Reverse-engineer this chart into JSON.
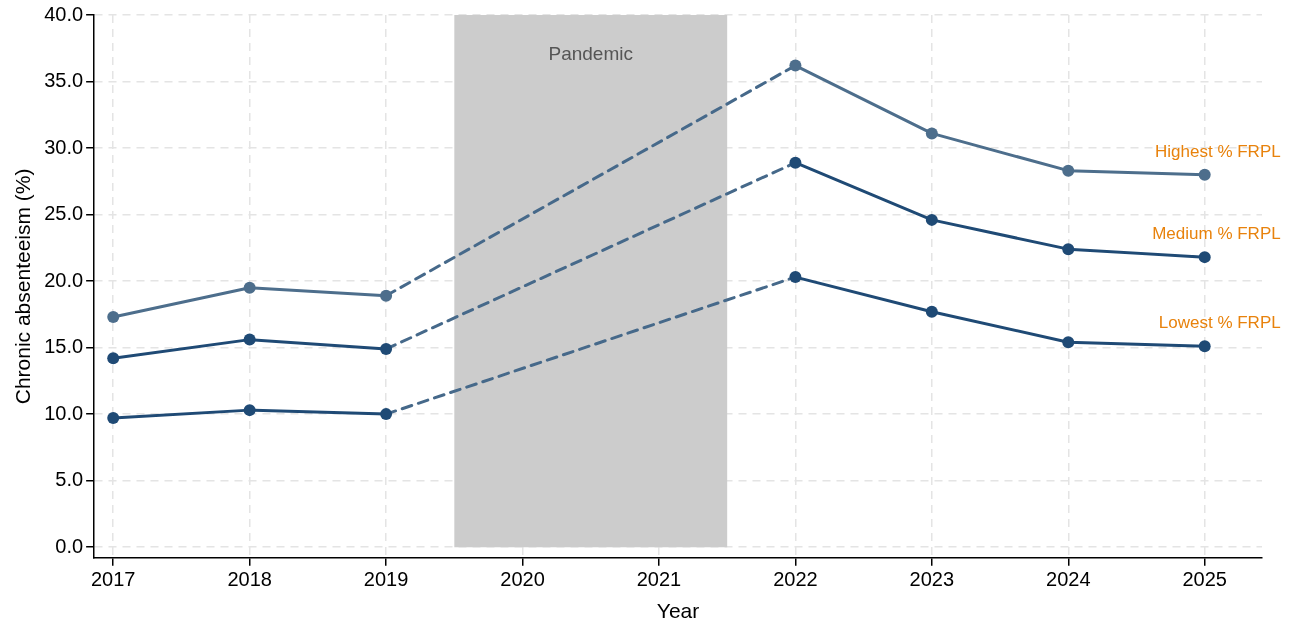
{
  "chart_data": {
    "type": "line",
    "xlabel": "Year",
    "ylabel": "Chronic absenteeism (%)",
    "xlim": [
      2016.86,
      2025.42
    ],
    "xticks": [
      2017,
      2018,
      2019,
      2020,
      2021,
      2022,
      2023,
      2024,
      2025
    ],
    "ylim": [
      -0.8,
      40
    ],
    "yticks": [
      {
        "value": 0,
        "label": "0.0"
      },
      {
        "value": 5,
        "label": "5.0"
      },
      {
        "value": 10,
        "label": "10.0"
      },
      {
        "value": 15,
        "label": "15.0"
      },
      {
        "value": 20,
        "label": "20.0"
      },
      {
        "value": 25,
        "label": "25.0"
      },
      {
        "value": 30,
        "label": "30.0"
      },
      {
        "value": 35,
        "label": "35.0"
      },
      {
        "value": 40,
        "label": "40.0"
      }
    ],
    "grid": true,
    "legend": false,
    "marker": "circle",
    "line_style": "solid",
    "bands": [
      {
        "axis": "x",
        "from": 2019.5,
        "to": 2021.5,
        "label": "Pandemic",
        "color": "#cccccc"
      }
    ],
    "series": [
      {
        "name": "Highest % FRPL",
        "color": "#4d6e8c",
        "x": [
          2017,
          2018,
          2019,
          2020,
          2021,
          2022,
          2023,
          2024,
          2025
        ],
        "values": [
          17.3,
          19.5,
          18.9,
          null,
          null,
          36.2,
          31.1,
          28.3,
          28.0
        ]
      },
      {
        "name": "Medium % FRPL",
        "color": "#1f4a75",
        "x": [
          2017,
          2018,
          2019,
          2020,
          2021,
          2022,
          2023,
          2024,
          2025
        ],
        "values": [
          14.2,
          15.6,
          14.9,
          null,
          null,
          28.9,
          24.6,
          22.4,
          21.8
        ]
      },
      {
        "name": "Lowest % FRPL",
        "color": "#1f4a75",
        "x": [
          2017,
          2018,
          2019,
          2020,
          2021,
          2022,
          2023,
          2024,
          2025
        ],
        "values": [
          9.7,
          10.3,
          10.0,
          null,
          null,
          20.3,
          17.7,
          15.4,
          15.1
        ]
      },
      {
        "color": "#46698a",
        "x": [
          2019,
          2022
        ],
        "values": [
          18.9,
          36.2
        ],
        "line_style": "dashed",
        "marker": "none"
      },
      {
        "color": "#46698a",
        "x": [
          2019,
          2022
        ],
        "values": [
          14.9,
          28.9
        ],
        "line_style": "dashed",
        "marker": "none"
      },
      {
        "color": "#46698a",
        "x": [
          2019,
          2022
        ],
        "values": [
          10.0,
          20.3
        ],
        "line_style": "dashed",
        "marker": "none"
      }
    ]
  }
}
